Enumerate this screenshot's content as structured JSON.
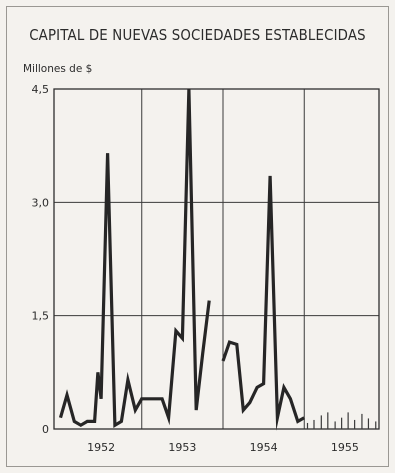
{
  "chart_data": {
    "type": "line",
    "title": "CAPITAL DE NUEVAS SOCIEDADES ESTABLECIDAS",
    "ylabel": "Millones de $",
    "xlabel": "",
    "ylim": [
      0,
      4.5
    ],
    "xlim": [
      1951.92,
      1955.92
    ],
    "grid": true,
    "yticks": [
      {
        "value": 0,
        "label": "0"
      },
      {
        "value": 1.5,
        "label": "1,5"
      },
      {
        "value": 3.0,
        "label": "3,0"
      },
      {
        "value": 4.5,
        "label": "4,5"
      }
    ],
    "xticks": [
      {
        "value": 1952.5,
        "label": "1952"
      },
      {
        "value": 1953.5,
        "label": "1953"
      },
      {
        "value": 1954.5,
        "label": "1954"
      },
      {
        "value": 1955.5,
        "label": "1955"
      }
    ],
    "year_boundaries": [
      1953.0,
      1954.0,
      1955.0
    ],
    "series": [
      {
        "name": "",
        "x": [
          1952.0,
          1952.08,
          1952.17,
          1952.25,
          1952.33,
          1952.42,
          1952.46,
          1952.5,
          1952.58,
          1952.67,
          1952.75,
          1952.83,
          1952.92,
          1953.0,
          1953.08,
          1953.17,
          1953.25,
          1953.33,
          1953.42,
          1953.5,
          1953.58,
          1953.67,
          1953.75,
          1953.83
        ],
        "y": [
          0.15,
          0.45,
          0.1,
          0.05,
          0.1,
          0.1,
          0.75,
          0.4,
          3.65,
          0.05,
          0.1,
          0.65,
          0.25,
          0.4,
          0.4,
          0.4,
          0.4,
          0.15,
          1.3,
          1.2,
          4.5,
          0.25,
          1.0,
          1.7
        ]
      },
      {
        "name": "",
        "x": [
          1954.0,
          1954.08,
          1954.17,
          1954.25,
          1954.33,
          1954.42,
          1954.5,
          1954.58,
          1954.67,
          1954.75,
          1954.83,
          1954.92,
          1955.0
        ],
        "y": [
          0.9,
          1.15,
          1.12,
          0.25,
          0.35,
          0.55,
          0.6,
          3.35,
          0.15,
          0.55,
          0.4,
          0.1,
          0.15
        ]
      }
    ],
    "bar_series": {
      "name": "",
      "x": [
        1955.04,
        1955.12,
        1955.21,
        1955.29,
        1955.38,
        1955.46,
        1955.54,
        1955.62,
        1955.71,
        1955.79,
        1955.88
      ],
      "y": [
        0.08,
        0.12,
        0.18,
        0.22,
        0.1,
        0.15,
        0.22,
        0.12,
        0.2,
        0.14,
        0.1
      ]
    }
  }
}
